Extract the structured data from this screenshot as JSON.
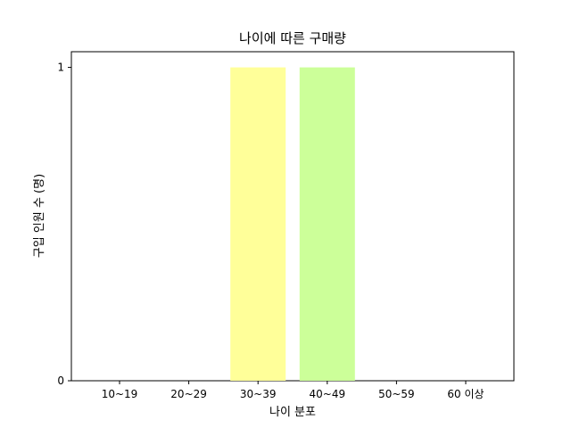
{
  "chart_data": {
    "type": "bar",
    "title": "나이에 따른 구매량",
    "xlabel": "나이 분포",
    "ylabel": "구입 인원 수 (명)",
    "categories": [
      "10~19",
      "20~29",
      "30~39",
      "40~49",
      "50~59",
      "60 이상"
    ],
    "values": [
      0,
      0,
      1,
      1,
      0,
      0
    ],
    "bar_colors": [
      "#ffb3b3",
      "#ffd9b3",
      "#ffff99",
      "#ccff99",
      "#99ffcc",
      "#99ccff"
    ],
    "yticks": [
      0,
      1
    ],
    "ylim": [
      0,
      1.05
    ],
    "grid": false,
    "legend": "none"
  }
}
